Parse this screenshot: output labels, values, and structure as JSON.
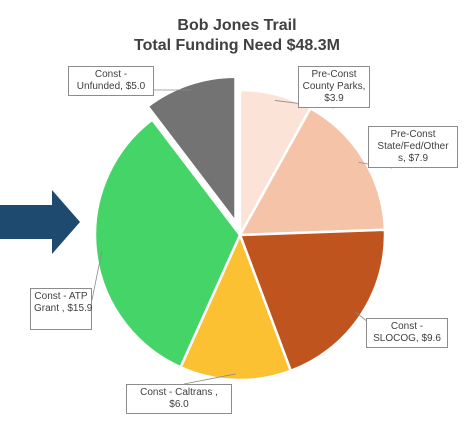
{
  "chart_data": {
    "type": "pie",
    "title": "Bob Jones Trail",
    "subtitle": "Total Funding Need $48.3M",
    "slices": [
      {
        "lines": [
          "Pre-Const",
          "County Parks,",
          "$3.9"
        ],
        "value": 3.9,
        "color": "#fbe3d7"
      },
      {
        "lines": [
          "Pre-Const",
          "State/Fed/Other",
          "s, $7.9"
        ],
        "value": 7.9,
        "color": "#f5c4a8"
      },
      {
        "lines": [
          "Const -",
          "SLOCOG, $9.6"
        ],
        "value": 9.6,
        "color": "#c0541f"
      },
      {
        "lines": [
          "Const - Caltrans ,",
          "$6.0"
        ],
        "value": 6.0,
        "color": "#fbc132"
      },
      {
        "lines": [
          "Const - ATP",
          "Grant , $15.9"
        ],
        "value": 15.9,
        "color": "#44d468"
      },
      {
        "lines": [
          "Const -",
          "Unfunded, $5.0"
        ],
        "value": 5.0,
        "color": "#737373",
        "exploded": true
      }
    ],
    "legend": "none"
  },
  "annotation": {
    "arrow_color": "#1e4a70",
    "arrow_direction": "right"
  }
}
